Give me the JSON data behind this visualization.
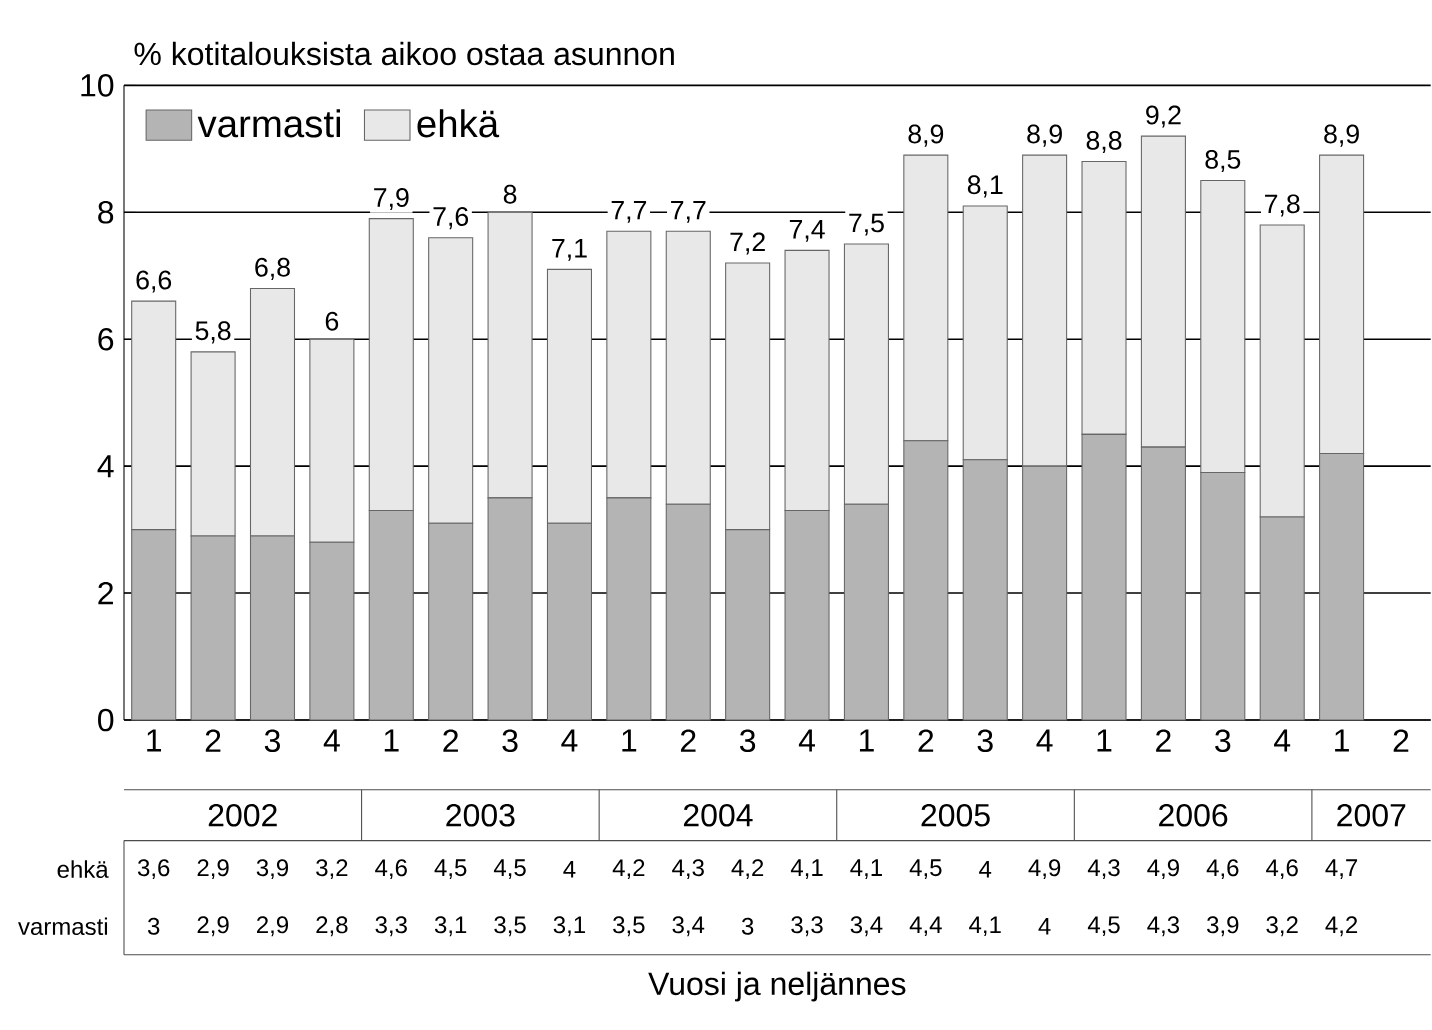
{
  "chart_data": {
    "type": "bar",
    "stacked": true,
    "title": "% kotitalouksista aikoo ostaa asunnon",
    "categories": [
      "1",
      "2",
      "3",
      "4",
      "1",
      "2",
      "3",
      "4",
      "1",
      "2",
      "3",
      "4",
      "1",
      "2",
      "3",
      "4",
      "1",
      "2",
      "3",
      "4",
      "1",
      "2"
    ],
    "series": [
      {
        "name": "varmasti",
        "color": "#b4b4b4",
        "values": [
          3,
          2.9,
          2.9,
          2.8,
          3.3,
          3.1,
          3.5,
          3.1,
          3.5,
          3.4,
          3,
          3.3,
          3.4,
          4.4,
          4.1,
          4,
          4.5,
          4.3,
          3.9,
          3.2,
          4.2,
          null
        ],
        "value_labels": [
          "3",
          "2,9",
          "2,9",
          "2,8",
          "3,3",
          "3,1",
          "3,5",
          "3,1",
          "3,5",
          "3,4",
          "3",
          "3,3",
          "3,4",
          "4,4",
          "4,1",
          "4",
          "4,5",
          "4,3",
          "3,9",
          "3,2",
          "4,2",
          null
        ]
      },
      {
        "name": "ehkä",
        "color": "#e8e8e8",
        "values": [
          3.6,
          2.9,
          3.9,
          3.2,
          4.6,
          4.5,
          4.5,
          4,
          4.2,
          4.3,
          4.2,
          4.1,
          4.1,
          4.5,
          4,
          4.9,
          4.3,
          4.9,
          4.6,
          4.6,
          4.7,
          null
        ],
        "value_labels": [
          "3,6",
          "2,9",
          "3,9",
          "3,2",
          "4,6",
          "4,5",
          "4,5",
          "4",
          "4,2",
          "4,3",
          "4,2",
          "4,1",
          "4,1",
          "4,5",
          "4",
          "4,9",
          "4,3",
          "4,9",
          "4,6",
          "4,6",
          "4,7",
          null
        ]
      }
    ],
    "totals": [
      "6,6",
      "5,8",
      "6,8",
      "6",
      "7,9",
      "7,6",
      "8",
      "7,1",
      "7,7",
      "7,7",
      "7,2",
      "7,4",
      "7,5",
      "8,9",
      "8,1",
      "8,9",
      "8,8",
      "9,2",
      "8,5",
      "7,8",
      "8,9",
      null
    ],
    "annotations": [
      "2002",
      "2003",
      "2004",
      "2005",
      "2006",
      "2007",
      "Vuosi ja neljännes"
    ],
    "ylim": [
      0,
      10
    ],
    "yticks": [
      0,
      2,
      4,
      6,
      8,
      10
    ],
    "grid": "y",
    "legend": "top left"
  }
}
